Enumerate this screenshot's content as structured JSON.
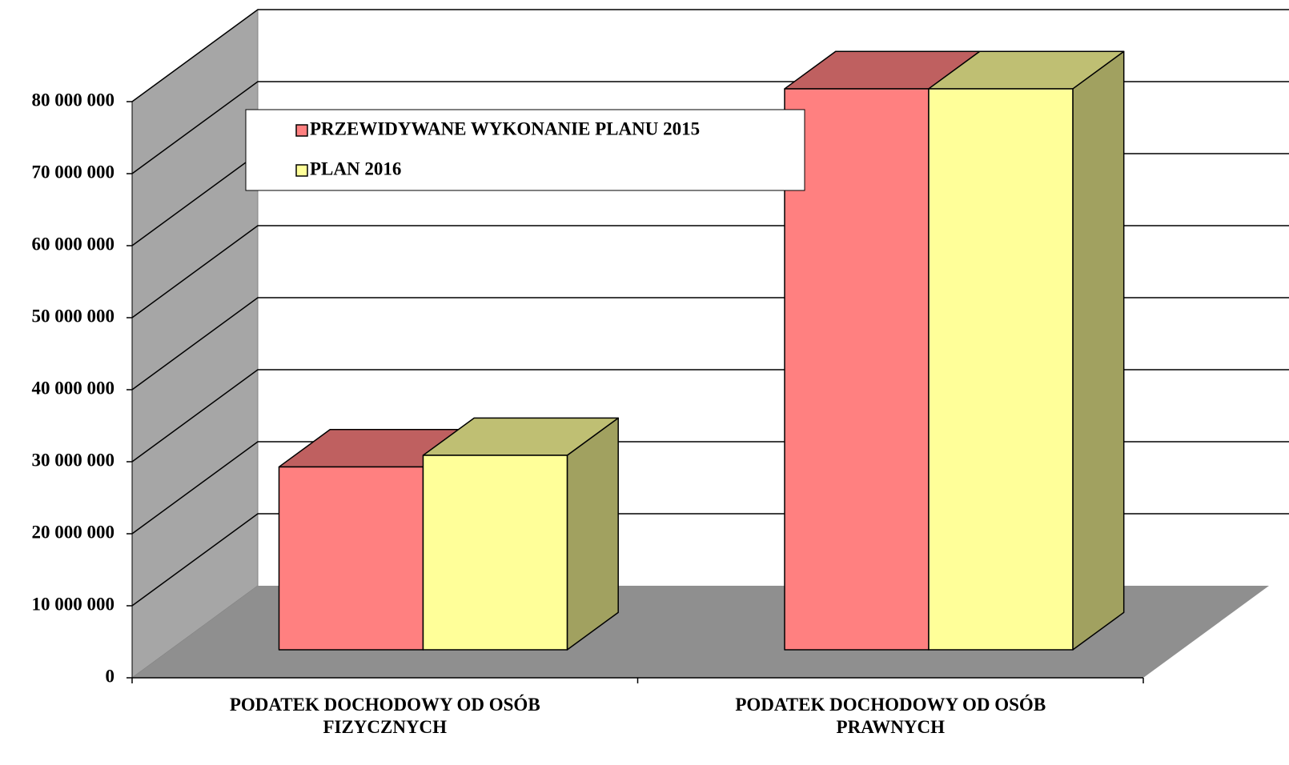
{
  "chart_data": {
    "type": "bar3d",
    "categories": [
      "PODATEK DOCHODOWY OD OSÓB\nFIZYCZNYCH",
      "PODATEK DOCHODOWY OD OSÓB\nPRAWNYCH"
    ],
    "series": [
      {
        "name": "PRZEWIDYWANE WYKONANIE PLANU 2015",
        "color": "#ff8080",
        "values": [
          25400000,
          77900000
        ]
      },
      {
        "name": "PLAN 2016",
        "color": "#ffff99",
        "values": [
          27000000,
          77900000
        ]
      }
    ],
    "ylim": [
      0,
      80000000
    ],
    "yticks": [
      0,
      {
        "value": 10000000,
        "label": "10 000 000"
      },
      {
        "value": 20000000,
        "label": "20 000 000"
      },
      {
        "value": 30000000,
        "label": "30 000 000"
      },
      {
        "value": 40000000,
        "label": "40 000 000"
      },
      {
        "value": 50000000,
        "label": "50 000 000"
      },
      {
        "value": 60000000,
        "label": "60 000 000"
      },
      {
        "value": 70000000,
        "label": "70 000 000"
      },
      {
        "value": 80000000,
        "label": "80 000 000"
      }
    ],
    "grid": true,
    "legend": "upper left"
  }
}
